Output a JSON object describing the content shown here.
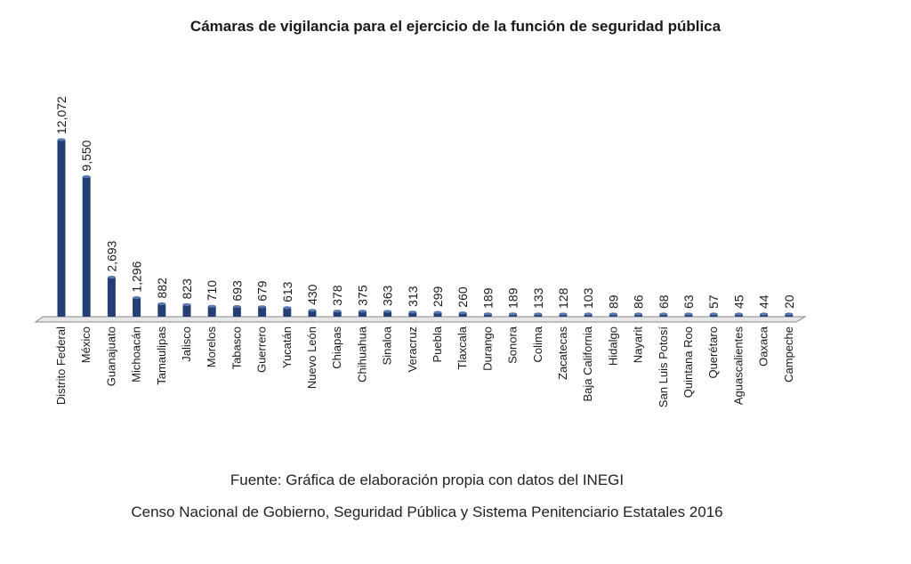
{
  "chart_data": {
    "type": "bar",
    "title": "Cámaras de vigilancia para el ejercicio de la función de seguridad pública",
    "xlabel": "",
    "ylabel": "",
    "ylim": [
      0,
      12500
    ],
    "grid": false,
    "legend": "none",
    "bar_color": "#243f73",
    "categories": [
      "Distrito Federal",
      "México",
      "Guanajuato",
      "Michoacán",
      "Tamaulipas",
      "Jalisco",
      "Morelos",
      "Tabasco",
      "Guerrero",
      "Yucatán",
      "Nuevo León",
      "Chiapas",
      "Chihuahua",
      "Sinaloa",
      "Veracruz",
      "Puebla",
      "Tlaxcala",
      "Durango",
      "Sonora",
      "Colima",
      "Zacatecas",
      "Baja California",
      "Hidalgo",
      "Nayarit",
      "San Luis Potosí",
      "Quintana Roo",
      "Querétaro",
      "Aguascalientes",
      "Oaxaca",
      "Campeche"
    ],
    "values": [
      12072,
      9550,
      2693,
      1296,
      882,
      823,
      710,
      693,
      679,
      613,
      430,
      378,
      375,
      363,
      313,
      299,
      260,
      189,
      189,
      133,
      128,
      103,
      89,
      86,
      68,
      63,
      57,
      45,
      44,
      20
    ],
    "value_labels": [
      "12,072",
      "9,550",
      "2,693",
      "1,296",
      "882",
      "823",
      "710",
      "693",
      "679",
      "613",
      "430",
      "378",
      "375",
      "363",
      "313",
      "299",
      "260",
      "189",
      "189",
      "133",
      "128",
      "103",
      "89",
      "86",
      "68",
      "63",
      "57",
      "45",
      "44",
      "20"
    ]
  },
  "source": {
    "line1": "Fuente: Gráfica de elaboración propia con datos del INEGI",
    "line2": "Censo Nacional de Gobierno, Seguridad Pública y Sistema Penitenciario Estatales 2016"
  }
}
